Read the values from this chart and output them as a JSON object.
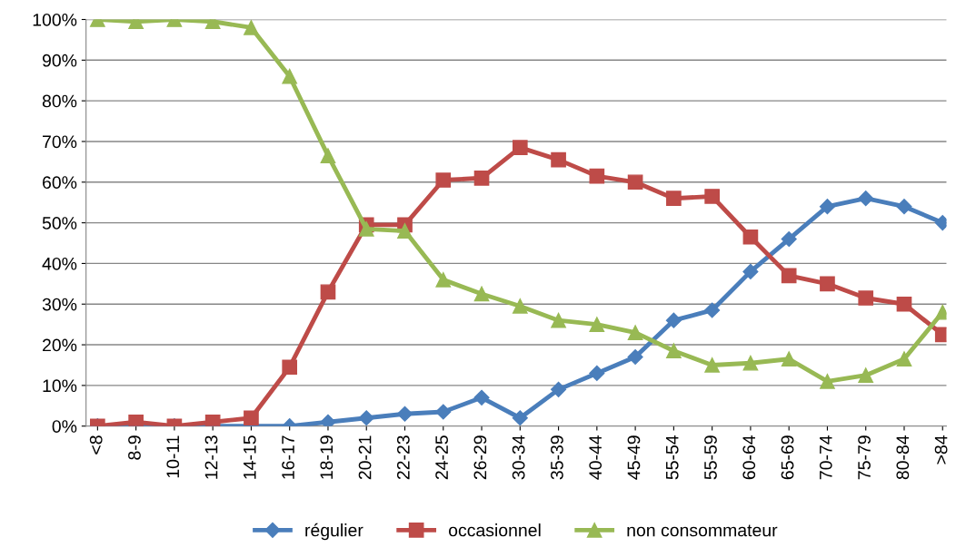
{
  "chart_data": {
    "type": "line",
    "categories": [
      "<8",
      "8-9",
      "10-11",
      "12-13",
      "14-15",
      "16-17",
      "18-19",
      "20-21",
      "22-23",
      "24-25",
      "26-29",
      "30-34",
      "35-39",
      "40-44",
      "45-49",
      "55-54",
      "55-59",
      "60-64",
      "65-69",
      "70-74",
      "75-79",
      "80-84",
      ">84"
    ],
    "series": [
      {
        "name": "régulier",
        "color": "#4a7ebb",
        "marker": "diamond",
        "values": [
          0,
          0,
          0,
          0,
          0,
          0,
          1,
          2,
          3,
          3.5,
          7,
          2,
          9,
          13,
          17,
          26,
          28.5,
          38,
          46,
          54,
          56,
          54,
          50
        ]
      },
      {
        "name": "occasionnel",
        "color": "#be4b48",
        "marker": "square",
        "values": [
          0,
          1,
          0,
          1,
          2,
          14.5,
          33,
          49.5,
          49.5,
          60.5,
          61,
          68.5,
          65.5,
          61.5,
          60,
          56,
          56.5,
          46.5,
          37,
          35,
          31.5,
          30,
          22.5
        ]
      },
      {
        "name": "non consommateur",
        "color": "#98b954",
        "marker": "triangle",
        "values": [
          100,
          99.5,
          100,
          99.5,
          98,
          86,
          66.5,
          48.5,
          48,
          36,
          32.5,
          29.5,
          26,
          25,
          23,
          18.5,
          15,
          15.5,
          16.5,
          11,
          12.5,
          16.5,
          28
        ]
      }
    ],
    "ylim": [
      0,
      100
    ],
    "yticks": [
      {
        "value": 0,
        "label": "0%"
      },
      {
        "value": 10,
        "label": "10%"
      },
      {
        "value": 20,
        "label": "20%"
      },
      {
        "value": 30,
        "label": "30%"
      },
      {
        "value": 40,
        "label": "40%"
      },
      {
        "value": 50,
        "label": "50%"
      },
      {
        "value": 60,
        "label": "60%"
      },
      {
        "value": 70,
        "label": "70%"
      },
      {
        "value": 80,
        "label": "80%"
      },
      {
        "value": 90,
        "label": "90%"
      },
      {
        "value": 100,
        "label": "100%"
      }
    ],
    "grid": "y",
    "legend": "bottom",
    "line_style": "solid"
  }
}
